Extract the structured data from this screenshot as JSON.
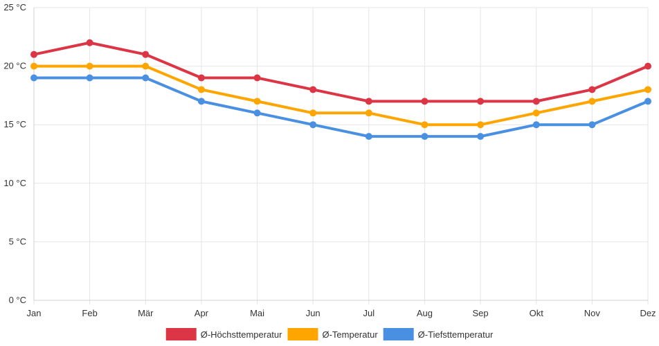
{
  "chart_data": {
    "type": "line",
    "title": "",
    "xlabel": "",
    "ylabel": "",
    "ylim": [
      0,
      25
    ],
    "yticks": [
      0,
      5,
      10,
      15,
      20,
      25
    ],
    "ytick_suffix": " °C",
    "grid": true,
    "legend_position": "bottom-center",
    "categories": [
      "Jan",
      "Feb",
      "Mär",
      "Apr",
      "Mai",
      "Jun",
      "Jul",
      "Aug",
      "Sep",
      "Okt",
      "Nov",
      "Dez"
    ],
    "series": [
      {
        "name": "Ø-Höchsttemperatur",
        "color": "#dc3545",
        "values": [
          21,
          22,
          21,
          19,
          19,
          18,
          17,
          17,
          17,
          17,
          18,
          20
        ]
      },
      {
        "name": "Ø-Temperatur",
        "color": "#ffa500",
        "values": [
          20,
          20,
          20,
          18,
          17,
          16,
          16,
          15,
          15,
          16,
          17,
          18
        ]
      },
      {
        "name": "Ø-Tiefsttemperatur",
        "color": "#4a90e2",
        "values": [
          19,
          19,
          19,
          17,
          16,
          15,
          14,
          14,
          14,
          15,
          15,
          17
        ]
      }
    ]
  }
}
